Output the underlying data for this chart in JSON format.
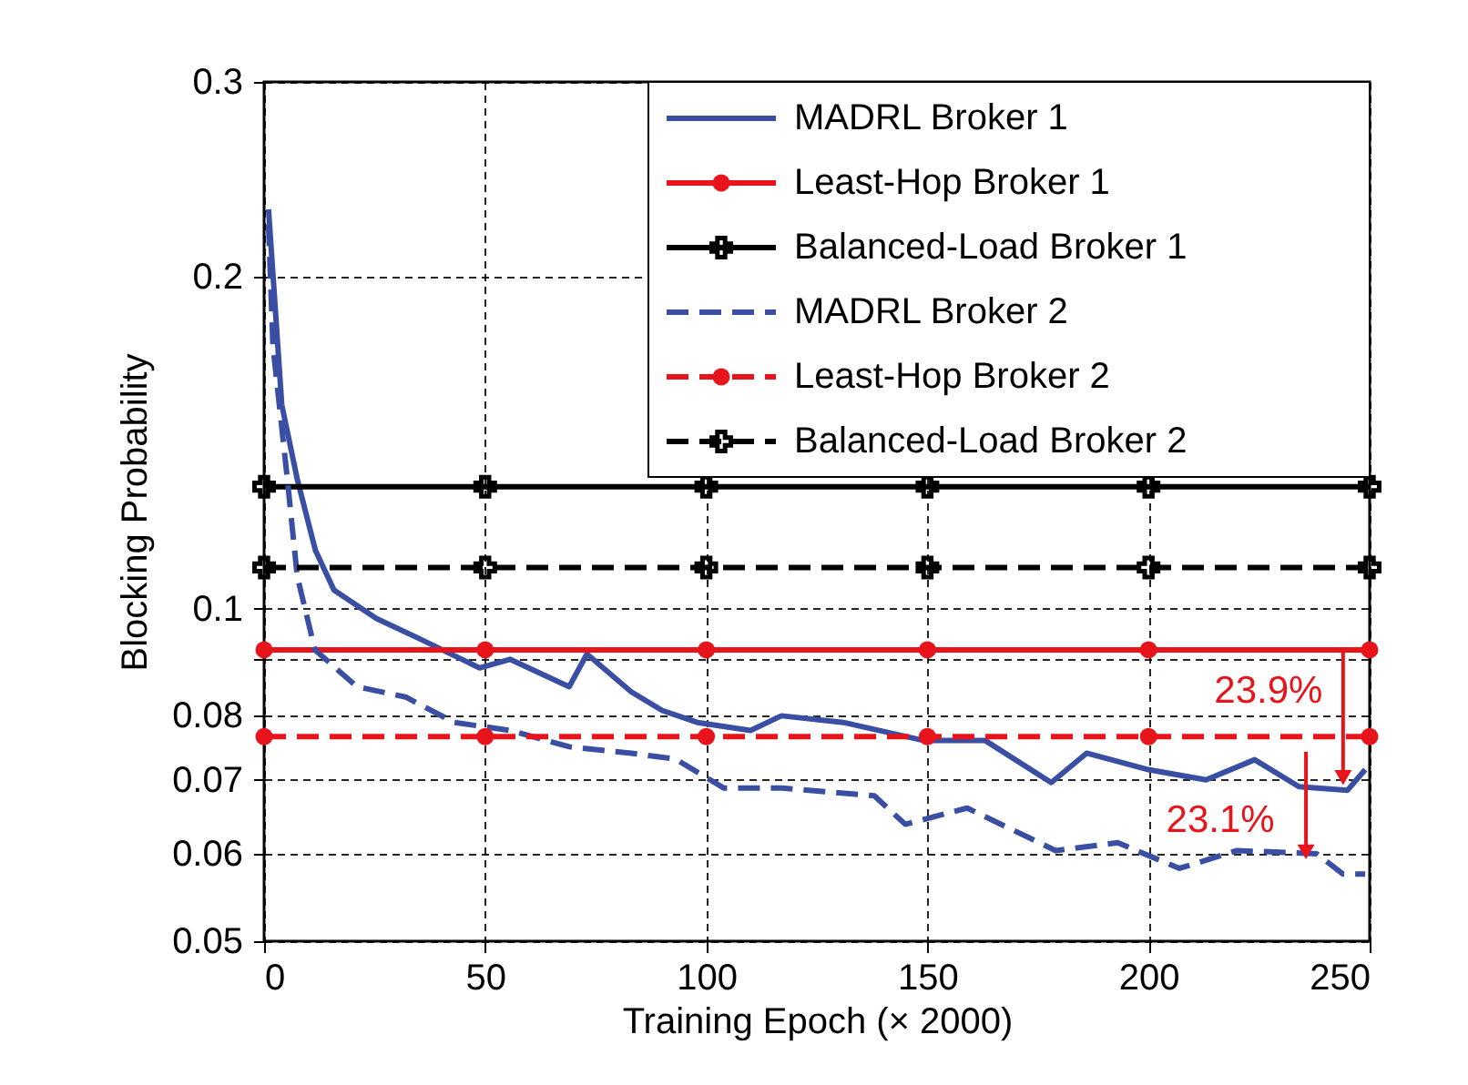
{
  "chart_data": {
    "type": "line",
    "xlabel": "Training Epoch (× 2000)",
    "ylabel": "Blocking Probability",
    "log": "y",
    "grid": true,
    "legend": "top right",
    "xlim": [
      0,
      250
    ],
    "xticks": [
      0,
      50,
      100,
      150,
      200,
      250
    ],
    "ylim": [
      0.05,
      0.3
    ],
    "yticks": [
      0.05,
      0.06,
      0.07,
      0.08,
      {
        "value": 0.09,
        "label": null
      },
      0.1,
      0.2,
      0.3
    ],
    "annotations": [
      {
        "text": "23.9%",
        "x": 244,
        "y": 0.069
      },
      {
        "text": "23.1%",
        "x": 235.6,
        "y": 0.0591
      }
    ],
    "series": [
      {
        "name": "MADRL Broker 1",
        "color": "#3a4fa3",
        "line_style": "solid",
        "marker": "none",
        "x": [
          1,
          2,
          4,
          7.5,
          11.6,
          15.8,
          25.4,
          35,
          48.7,
          55.6,
          69,
          73,
          83,
          90,
          98,
          110,
          117,
          131,
          149,
          163,
          178,
          186,
          200,
          213,
          224,
          234,
          245,
          249
        ],
        "values": [
          0.23,
          0.201,
          0.153,
          0.131,
          0.113,
          0.104,
          0.098,
          0.094,
          0.0884,
          0.09,
          0.085,
          0.091,
          0.0841,
          0.0809,
          0.0789,
          0.0776,
          0.08,
          0.0789,
          0.076,
          0.076,
          0.0696,
          0.074,
          0.0715,
          0.07,
          0.073,
          0.069,
          0.0685,
          0.0715
        ]
      },
      {
        "name": "Least-Hop Broker 1",
        "color": "#e8141c",
        "line_style": "solid",
        "marker": "circle",
        "x": [
          0,
          50,
          100,
          150,
          200,
          250
        ],
        "values": [
          0.0918,
          0.0918,
          0.0918,
          0.0918,
          0.0918,
          0.0918
        ]
      },
      {
        "name": "Balanced-Load Broker 1",
        "color": "#000000",
        "line_style": "solid",
        "marker": "cross",
        "x": [
          0,
          50,
          100,
          150,
          200,
          250
        ],
        "values": [
          0.129,
          0.129,
          0.129,
          0.129,
          0.129,
          0.129
        ]
      },
      {
        "name": "MADRL Broker 2",
        "color": "#3a4fa3",
        "line_style": "dashed",
        "marker": "none",
        "x": [
          1,
          2,
          5,
          7.5,
          11.5,
          21,
          32,
          43,
          55.6,
          69,
          83,
          93,
          104,
          117,
          138,
          145,
          159,
          179,
          193,
          207,
          220,
          238,
          244,
          249
        ],
        "values": [
          0.223,
          0.173,
          0.134,
          0.107,
          0.0918,
          0.085,
          0.0832,
          0.0789,
          0.0776,
          0.075,
          0.074,
          0.0731,
          0.0688,
          0.0688,
          0.0677,
          0.0638,
          0.066,
          0.0604,
          0.0614,
          0.0582,
          0.0604,
          0.06,
          0.0575,
          0.0575
        ]
      },
      {
        "name": "Least-Hop Broker 2",
        "color": "#e8141c",
        "line_style": "dashed",
        "marker": "circle",
        "x": [
          0,
          50,
          100,
          150,
          200,
          250
        ],
        "values": [
          0.0766,
          0.0766,
          0.0766,
          0.0766,
          0.0766,
          0.0766
        ]
      },
      {
        "name": "Balanced-Load Broker 2",
        "color": "#000000",
        "line_style": "dashed",
        "marker": "cross",
        "x": [
          0,
          50,
          100,
          150,
          200,
          250
        ],
        "values": [
          0.109,
          0.109,
          0.109,
          0.109,
          0.109,
          0.109
        ]
      }
    ]
  }
}
